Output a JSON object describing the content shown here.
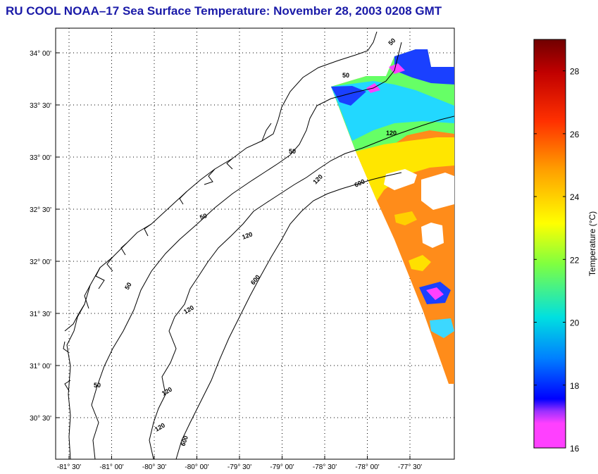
{
  "title": "RU COOL  NOAA–17  Sea Surface Temperature:  November 28, 2003 0208 GMT",
  "map": {
    "x_ticks": [
      "-81° 30'",
      "-81° 00'",
      "-80° 30'",
      "-80° 00'",
      "-79° 30'",
      "-79° 00'",
      "-78° 30'",
      "-78° 00'",
      "-77° 30'"
    ],
    "y_ticks": [
      "34° 00'",
      "33° 30'",
      "33° 00'",
      "32° 30'",
      "32° 00'",
      "31° 30'",
      "31° 00'",
      "30° 30'"
    ],
    "isobath_labels": [
      {
        "text": "50"
      },
      {
        "text": "50"
      },
      {
        "text": "50"
      },
      {
        "text": "50"
      },
      {
        "text": "50"
      },
      {
        "text": "50"
      },
      {
        "text": "120"
      },
      {
        "text": "120"
      },
      {
        "text": "120"
      },
      {
        "text": "120"
      },
      {
        "text": "120"
      },
      {
        "text": "120"
      },
      {
        "text": "600"
      },
      {
        "text": "600"
      },
      {
        "text": "600"
      }
    ]
  },
  "colorbar": {
    "label": "Temperature (°C)",
    "ticks": [
      "16",
      "18",
      "20",
      "22",
      "24",
      "26",
      "28"
    ],
    "min": 16,
    "max": 29,
    "colors": [
      "#ff40ff",
      "#9b30ff",
      "#0000ff",
      "#0090ff",
      "#00e0e0",
      "#7fff40",
      "#ffff00",
      "#ffa000",
      "#ff3000",
      "#c00000",
      "#700000"
    ]
  }
}
